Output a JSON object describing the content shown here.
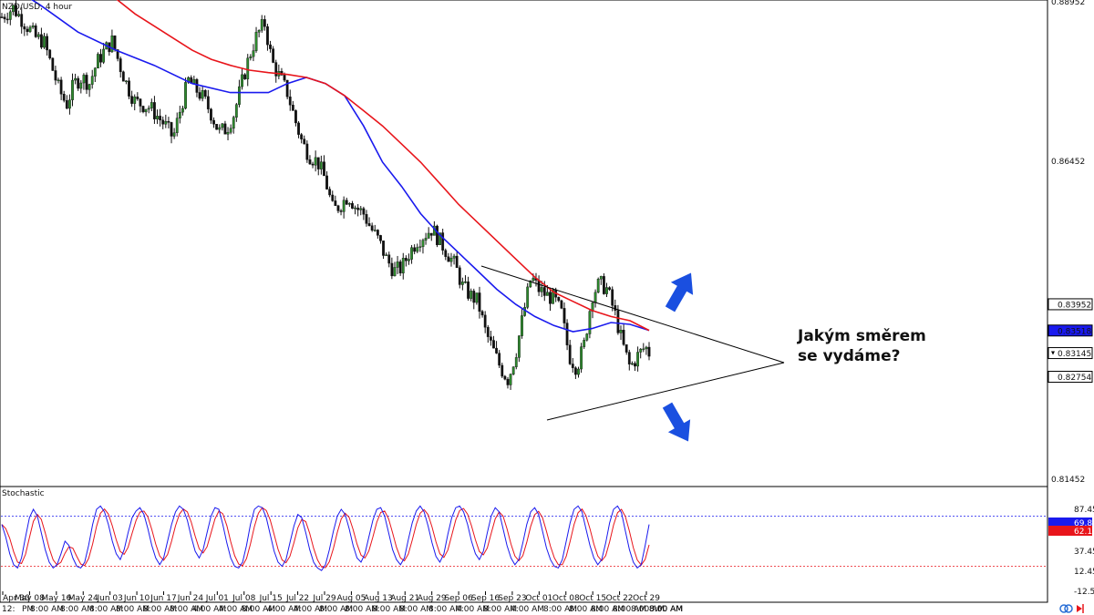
{
  "chart_data": [
    {
      "type": "candlestick",
      "title": "NZD/USD, 4 hour",
      "price_scale": {
        "range": [
          0.81,
          0.8895
        ],
        "ticks": [
          "0.88952",
          "0.86452",
          "0.81452"
        ]
      },
      "price_tags": [
        {
          "label": "0.83952",
          "value": 0.83952,
          "style": "outline"
        },
        {
          "label": "0.83518",
          "value": 0.83518,
          "style": "blue"
        },
        {
          "label": "0.83145",
          "value": 0.83145,
          "style": "outline-arrow"
        },
        {
          "label": "0.82754",
          "value": 0.82754,
          "style": "outline"
        }
      ],
      "x_ticks": [
        "Apr 30",
        "May 08",
        "May 16",
        "May 24",
        "Jun 03",
        "Jun 10",
        "Jun 17",
        "Jun 24",
        "Jul 01",
        "Jul 08",
        "Jul 15",
        "Jul 22",
        "Jul 29",
        "Aug 05",
        "Aug 13",
        "Aug 21",
        "Aug 29",
        "Sep 06",
        "Sep 16",
        "Sep 23",
        "Oct 01",
        "Oct 08",
        "Oct 15",
        "Oct 22",
        "Oct 29"
      ],
      "bottom_labels": [
        "12:",
        "PM",
        "8:00 AM",
        "8:00 AM",
        "8:00 AM",
        "8:00 AM",
        "8:00 AM",
        "8:00 AM",
        "4:00 AM",
        "4:00 AM",
        "8:00 AM",
        "4:00 AM",
        "4:00 AM",
        "8:00 AM",
        "8:00 AM",
        "8:00 AM",
        "8:00 AM",
        "8:00 AM",
        "4:00 AM",
        "8:00 AM",
        "4:00 AM",
        "8:00 AM",
        "8:00 AM",
        "8:00 AM",
        "8:00 AM",
        "8:00 AM",
        "8:00 AM",
        "8:00 AM",
        "8:00 AM"
      ],
      "close_path": [
        [
          0,
          0.887
        ],
        [
          3,
          0.8885
        ],
        [
          6,
          0.886
        ],
        [
          9,
          0.8835
        ],
        [
          11,
          0.883
        ],
        [
          13,
          0.879
        ],
        [
          15,
          0.875
        ],
        [
          17,
          0.8725
        ],
        [
          19,
          0.876
        ],
        [
          21,
          0.877
        ],
        [
          23,
          0.876
        ],
        [
          25,
          0.8795
        ],
        [
          27,
          0.8815
        ],
        [
          29,
          0.883
        ],
        [
          31,
          0.879
        ],
        [
          33,
          0.8755
        ],
        [
          35,
          0.873
        ],
        [
          37,
          0.8725
        ],
        [
          39,
          0.872
        ],
        [
          41,
          0.8705
        ],
        [
          43,
          0.869
        ],
        [
          45,
          0.867
        ],
        [
          47,
          0.872
        ],
        [
          49,
          0.8765
        ],
        [
          51,
          0.875
        ],
        [
          53,
          0.8735
        ],
        [
          55,
          0.871
        ],
        [
          57,
          0.868
        ],
        [
          59,
          0.8685
        ],
        [
          61,
          0.871
        ],
        [
          63,
          0.876
        ],
        [
          65,
          0.8805
        ],
        [
          67,
          0.884
        ],
        [
          69,
          0.886
        ],
        [
          71,
          0.8795
        ],
        [
          73,
          0.877
        ],
        [
          75,
          0.8745
        ],
        [
          77,
          0.87
        ],
        [
          79,
          0.866
        ],
        [
          81,
          0.864
        ],
        [
          83,
          0.863
        ],
        [
          85,
          0.86
        ],
        [
          87,
          0.855
        ],
        [
          89,
          0.856
        ],
        [
          91,
          0.8575
        ],
        [
          93,
          0.8555
        ],
        [
          95,
          0.8545
        ],
        [
          97,
          0.852
        ],
        [
          99,
          0.85
        ],
        [
          101,
          0.847
        ],
        [
          103,
          0.845
        ],
        [
          105,
          0.8455
        ],
        [
          107,
          0.848
        ],
        [
          109,
          0.85
        ],
        [
          111,
          0.851
        ],
        [
          113,
          0.852
        ],
        [
          115,
          0.85
        ],
        [
          117,
          0.848
        ],
        [
          119,
          0.846
        ],
        [
          121,
          0.8425
        ],
        [
          123,
          0.841
        ],
        [
          125,
          0.84
        ],
        [
          127,
          0.835
        ],
        [
          129,
          0.832
        ],
        [
          131,
          0.829
        ],
        [
          133,
          0.827
        ],
        [
          135,
          0.8315
        ],
        [
          137,
          0.838
        ],
        [
          139,
          0.844
        ],
        [
          141,
          0.842
        ],
        [
          143,
          0.841
        ],
        [
          145,
          0.8405
        ],
        [
          147,
          0.838
        ],
        [
          149,
          0.831
        ],
        [
          151,
          0.829
        ],
        [
          153,
          0.833
        ],
        [
          155,
          0.841
        ],
        [
          157,
          0.843
        ],
        [
          159,
          0.842
        ],
        [
          161,
          0.838
        ],
        [
          163,
          0.833
        ],
        [
          165,
          0.829
        ],
        [
          167,
          0.831
        ],
        [
          169,
          0.8325
        ],
        [
          170,
          0.8315
        ]
      ],
      "series": [
        {
          "name": "",
          "color": "#1a1aee",
          "points": [
            [
              0,
              0.893
            ],
            [
              10,
              0.889
            ],
            [
              20,
              0.8845
            ],
            [
              30,
              0.8815
            ],
            [
              40,
              0.879
            ],
            [
              50,
              0.876
            ],
            [
              60,
              0.8745
            ],
            [
              70,
              0.8745
            ],
            [
              75,
              0.876
            ],
            [
              80,
              0.877
            ],
            [
              85,
              0.876
            ],
            [
              90,
              0.874
            ],
            [
              95,
              0.869
            ],
            [
              100,
              0.863
            ],
            [
              105,
              0.859
            ],
            [
              110,
              0.8545
            ],
            [
              115,
              0.851
            ],
            [
              120,
              0.848
            ],
            [
              125,
              0.845
            ],
            [
              130,
              0.842
            ],
            [
              135,
              0.8395
            ],
            [
              140,
              0.8375
            ],
            [
              145,
              0.836
            ],
            [
              150,
              0.835
            ],
            [
              155,
              0.8355
            ],
            [
              160,
              0.8365
            ],
            [
              165,
              0.8362
            ],
            [
              170,
              0.8352
            ]
          ]
        },
        {
          "name": "",
          "color": "#e8151b",
          "points": [
            [
              25,
              0.894
            ],
            [
              30,
              0.89
            ],
            [
              35,
              0.8875
            ],
            [
              40,
              0.8855
            ],
            [
              45,
              0.8835
            ],
            [
              50,
              0.8815
            ],
            [
              55,
              0.88
            ],
            [
              60,
              0.879
            ],
            [
              65,
              0.8782
            ],
            [
              70,
              0.8778
            ],
            [
              75,
              0.8775
            ],
            [
              80,
              0.877
            ],
            [
              85,
              0.876
            ],
            [
              90,
              0.874
            ],
            [
              95,
              0.8715
            ],
            [
              100,
              0.869
            ],
            [
              105,
              0.866
            ],
            [
              110,
              0.863
            ],
            [
              115,
              0.8595
            ],
            [
              120,
              0.856
            ],
            [
              125,
              0.853
            ],
            [
              130,
              0.85
            ],
            [
              135,
              0.847
            ],
            [
              140,
              0.844
            ],
            [
              145,
              0.8415
            ],
            [
              150,
              0.84
            ],
            [
              155,
              0.8385
            ],
            [
              160,
              0.8375
            ],
            [
              165,
              0.8368
            ],
            [
              170,
              0.8352
            ]
          ]
        }
      ],
      "annotation": [
        "Jakým směrem",
        "se vydáme?"
      ]
    },
    {
      "type": "line",
      "title": "Stochastic",
      "ylim": [
        0,
        100
      ],
      "ticks": [
        "87.45",
        "62.45",
        "37.45",
        "12.45",
        "-12.55"
      ],
      "value_tags": [
        "69.81",
        "62.14"
      ],
      "levels": [
        80,
        20
      ],
      "series": [
        {
          "name": "",
          "color": "#1a1aee",
          "values": [
            70,
            55,
            35,
            22,
            18,
            30,
            55,
            78,
            88,
            80,
            60,
            40,
            25,
            18,
            22,
            35,
            50,
            45,
            30,
            20,
            18,
            25,
            45,
            70,
            88,
            92,
            85,
            70,
            50,
            35,
            28,
            40,
            60,
            78,
            86,
            90,
            82,
            65,
            45,
            30,
            22,
            30,
            50,
            70,
            85,
            92,
            88,
            75,
            55,
            38,
            30,
            40,
            60,
            80,
            90,
            88,
            70,
            48,
            30,
            20,
            18,
            25,
            45,
            70,
            88,
            92,
            90,
            78,
            58,
            38,
            25,
            20,
            28,
            48,
            68,
            82,
            78,
            60,
            40,
            25,
            18,
            15,
            22,
            40,
            62,
            80,
            88,
            82,
            65,
            45,
            30,
            25,
            35,
            55,
            75,
            88,
            90,
            80,
            60,
            40,
            28,
            22,
            30,
            52,
            72,
            86,
            92,
            85,
            68,
            48,
            32,
            25,
            35,
            58,
            78,
            90,
            92,
            85,
            70,
            50,
            35,
            28,
            38,
            60,
            80,
            90,
            85,
            65,
            45,
            30,
            22,
            28,
            48,
            70,
            85,
            90,
            82,
            62,
            42,
            28,
            20,
            18,
            28,
            50,
            72,
            88,
            92,
            85,
            65,
            45,
            30,
            22,
            28,
            48,
            72,
            88,
            92,
            84,
            62,
            40,
            25,
            18,
            22,
            45,
            70
          ]
        }
      ]
    }
  ]
}
